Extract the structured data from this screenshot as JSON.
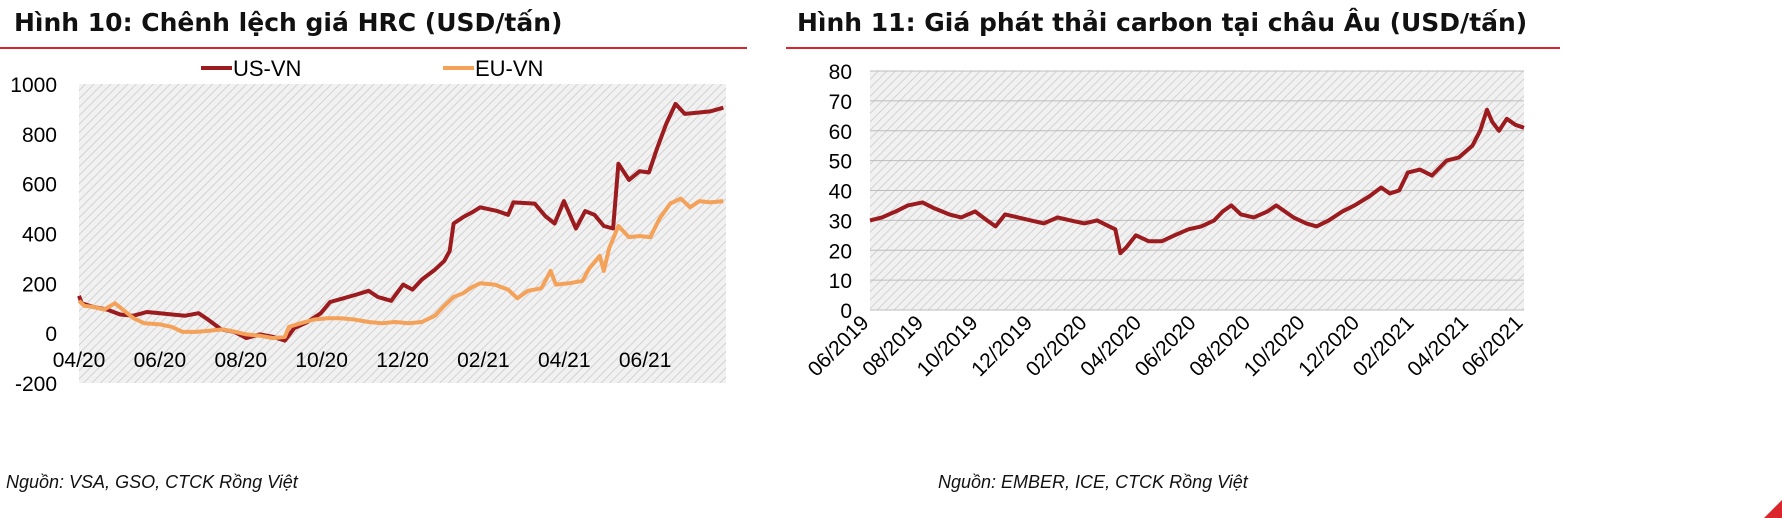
{
  "charts": [
    {
      "id": "fig10",
      "title": "Hình 10: Chênh lệch giá HRC (USD/tấn)",
      "source": "Nguồn: VSA, GSO, CTCK Rồng Việt"
    },
    {
      "id": "fig11",
      "title": "Hình 11: Giá phát thải carbon tại châu Âu (USD/tấn)",
      "source": "Nguồn: EMBER, ICE, CTCK Rồng Việt"
    }
  ],
  "colors": {
    "us_vn": "#9b1b1e",
    "eu_vn": "#f4a259",
    "carbon": "#9b1b1e",
    "accent": "#d9252b"
  },
  "chart_data": [
    {
      "type": "line",
      "title": "Hình 10: Chênh lệch giá HRC (USD/tấn)",
      "ylim": [
        -200,
        1000
      ],
      "yticks": [
        -200,
        0,
        200,
        400,
        600,
        800,
        1000
      ],
      "xlim": [
        "2020-04-01",
        "2021-08-01"
      ],
      "xtick_labels": [
        "04/20",
        "06/20",
        "08/20",
        "10/20",
        "12/20",
        "02/21",
        "04/21",
        "06/21"
      ],
      "legend_position": "top",
      "grid": "hatched",
      "series": [
        {
          "name": "US-VN",
          "points": [
            [
              "2020-04-01",
              150
            ],
            [
              "2020-04-03",
              120
            ],
            [
              "2020-04-12",
              105
            ],
            [
              "2020-04-22",
              95
            ],
            [
              "2020-05-02",
              75
            ],
            [
              "2020-05-12",
              70
            ],
            [
              "2020-05-22",
              85
            ],
            [
              "2020-06-01",
              80
            ],
            [
              "2020-06-10",
              75
            ],
            [
              "2020-06-20",
              70
            ],
            [
              "2020-06-30",
              80
            ],
            [
              "2020-07-07",
              55
            ],
            [
              "2020-07-17",
              15
            ],
            [
              "2020-07-27",
              5
            ],
            [
              "2020-08-05",
              -20
            ],
            [
              "2020-08-15",
              -5
            ],
            [
              "2020-08-25",
              -15
            ],
            [
              "2020-09-03",
              -30
            ],
            [
              "2020-09-10",
              20
            ],
            [
              "2020-09-20",
              45
            ],
            [
              "2020-09-30",
              80
            ],
            [
              "2020-10-07",
              125
            ],
            [
              "2020-10-17",
              140
            ],
            [
              "2020-10-27",
              155
            ],
            [
              "2020-11-05",
              170
            ],
            [
              "2020-11-12",
              145
            ],
            [
              "2020-11-22",
              130
            ],
            [
              "2020-12-01",
              195
            ],
            [
              "2020-12-08",
              175
            ],
            [
              "2020-12-15",
              215
            ],
            [
              "2020-12-25",
              255
            ],
            [
              "2021-01-01",
              290
            ],
            [
              "2021-01-05",
              330
            ],
            [
              "2021-01-08",
              440
            ],
            [
              "2021-01-15",
              465
            ],
            [
              "2021-01-22",
              485
            ],
            [
              "2021-01-28",
              505
            ],
            [
              "2021-02-10",
              490
            ],
            [
              "2021-02-18",
              475
            ],
            [
              "2021-02-22",
              525
            ],
            [
              "2021-03-10",
              520
            ],
            [
              "2021-03-18",
              470
            ],
            [
              "2021-03-25",
              440
            ],
            [
              "2021-04-01",
              530
            ],
            [
              "2021-04-10",
              420
            ],
            [
              "2021-04-17",
              490
            ],
            [
              "2021-04-24",
              475
            ],
            [
              "2021-05-01",
              430
            ],
            [
              "2021-05-08",
              420
            ],
            [
              "2021-05-12",
              680
            ],
            [
              "2021-05-20",
              615
            ],
            [
              "2021-05-28",
              650
            ],
            [
              "2021-06-04",
              645
            ],
            [
              "2021-06-10",
              740
            ],
            [
              "2021-06-17",
              840
            ],
            [
              "2021-06-24",
              920
            ],
            [
              "2021-07-01",
              880
            ],
            [
              "2021-07-10",
              885
            ],
            [
              "2021-07-20",
              890
            ],
            [
              "2021-07-30",
              905
            ]
          ]
        },
        {
          "name": "EU-VN",
          "points": [
            [
              "2020-04-01",
              130
            ],
            [
              "2020-04-05",
              110
            ],
            [
              "2020-04-12",
              105
            ],
            [
              "2020-04-20",
              95
            ],
            [
              "2020-04-28",
              120
            ],
            [
              "2020-05-05",
              90
            ],
            [
              "2020-05-12",
              60
            ],
            [
              "2020-05-20",
              40
            ],
            [
              "2020-06-01",
              35
            ],
            [
              "2020-06-10",
              25
            ],
            [
              "2020-06-18",
              5
            ],
            [
              "2020-06-28",
              5
            ],
            [
              "2020-07-08",
              10
            ],
            [
              "2020-07-18",
              15
            ],
            [
              "2020-07-28",
              5
            ],
            [
              "2020-08-05",
              -5
            ],
            [
              "2020-08-15",
              -10
            ],
            [
              "2020-08-25",
              -20
            ],
            [
              "2020-09-03",
              -15
            ],
            [
              "2020-09-06",
              25
            ],
            [
              "2020-09-15",
              40
            ],
            [
              "2020-09-25",
              55
            ],
            [
              "2020-10-05",
              60
            ],
            [
              "2020-10-15",
              60
            ],
            [
              "2020-10-25",
              55
            ],
            [
              "2020-11-05",
              45
            ],
            [
              "2020-11-15",
              40
            ],
            [
              "2020-11-25",
              45
            ],
            [
              "2020-12-05",
              40
            ],
            [
              "2020-12-15",
              45
            ],
            [
              "2020-12-25",
              70
            ],
            [
              "2021-01-01",
              110
            ],
            [
              "2021-01-08",
              145
            ],
            [
              "2021-01-15",
              160
            ],
            [
              "2021-01-22",
              185
            ],
            [
              "2021-01-28",
              200
            ],
            [
              "2021-02-08",
              195
            ],
            [
              "2021-02-18",
              175
            ],
            [
              "2021-02-25",
              140
            ],
            [
              "2021-03-05",
              170
            ],
            [
              "2021-03-15",
              180
            ],
            [
              "2021-03-22",
              250
            ],
            [
              "2021-03-26",
              195
            ],
            [
              "2021-04-05",
              200
            ],
            [
              "2021-04-15",
              210
            ],
            [
              "2021-04-20",
              260
            ],
            [
              "2021-04-28",
              310
            ],
            [
              "2021-05-01",
              250
            ],
            [
              "2021-05-05",
              340
            ],
            [
              "2021-05-12",
              430
            ],
            [
              "2021-05-20",
              385
            ],
            [
              "2021-05-28",
              390
            ],
            [
              "2021-06-05",
              385
            ],
            [
              "2021-06-12",
              460
            ],
            [
              "2021-06-20",
              520
            ],
            [
              "2021-06-28",
              540
            ],
            [
              "2021-07-05",
              505
            ],
            [
              "2021-07-12",
              530
            ],
            [
              "2021-07-20",
              525
            ],
            [
              "2021-07-30",
              530
            ]
          ]
        }
      ]
    },
    {
      "type": "line",
      "title": "Hình 11: Giá phát thải carbon tại châu Âu (USD/tấn)",
      "ylim": [
        0,
        80
      ],
      "yticks": [
        0,
        10,
        20,
        30,
        40,
        50,
        60,
        70,
        80
      ],
      "xlim": [
        "2019-06-01",
        "2021-06-30"
      ],
      "xtick_labels": [
        "06/2019",
        "08/2019",
        "10/2019",
        "12/2019",
        "02/2020",
        "04/2020",
        "06/2020",
        "08/2020",
        "10/2020",
        "12/2020",
        "02/2021",
        "04/2021",
        "06/2021"
      ],
      "grid": "hatched",
      "series": [
        {
          "points": [
            [
              "2019-06-01",
              30
            ],
            [
              "2019-06-15",
              31
            ],
            [
              "2019-07-01",
              33
            ],
            [
              "2019-07-15",
              35
            ],
            [
              "2019-08-01",
              36
            ],
            [
              "2019-08-15",
              34
            ],
            [
              "2019-09-01",
              32
            ],
            [
              "2019-09-15",
              31
            ],
            [
              "2019-10-01",
              33
            ],
            [
              "2019-10-15",
              30
            ],
            [
              "2019-10-25",
              28
            ],
            [
              "2019-11-05",
              32
            ],
            [
              "2019-11-20",
              31
            ],
            [
              "2019-12-05",
              30
            ],
            [
              "2019-12-20",
              29
            ],
            [
              "2020-01-05",
              31
            ],
            [
              "2020-01-20",
              30
            ],
            [
              "2020-02-05",
              29
            ],
            [
              "2020-02-20",
              30
            ],
            [
              "2020-03-05",
              28
            ],
            [
              "2020-03-12",
              27
            ],
            [
              "2020-03-18",
              19
            ],
            [
              "2020-03-25",
              21
            ],
            [
              "2020-04-05",
              25
            ],
            [
              "2020-04-20",
              23
            ],
            [
              "2020-05-05",
              23
            ],
            [
              "2020-05-20",
              25
            ],
            [
              "2020-06-05",
              27
            ],
            [
              "2020-06-20",
              28
            ],
            [
              "2020-07-05",
              30
            ],
            [
              "2020-07-15",
              33
            ],
            [
              "2020-07-25",
              35
            ],
            [
              "2020-08-05",
              32
            ],
            [
              "2020-08-20",
              31
            ],
            [
              "2020-09-05",
              33
            ],
            [
              "2020-09-15",
              35
            ],
            [
              "2020-09-25",
              33
            ],
            [
              "2020-10-05",
              31
            ],
            [
              "2020-10-20",
              29
            ],
            [
              "2020-11-01",
              28
            ],
            [
              "2020-11-15",
              30
            ],
            [
              "2020-12-01",
              33
            ],
            [
              "2020-12-15",
              35
            ],
            [
              "2021-01-01",
              38
            ],
            [
              "2021-01-15",
              41
            ],
            [
              "2021-01-25",
              39
            ],
            [
              "2021-02-05",
              40
            ],
            [
              "2021-02-15",
              46
            ],
            [
              "2021-03-01",
              47
            ],
            [
              "2021-03-15",
              45
            ],
            [
              "2021-04-01",
              50
            ],
            [
              "2021-04-15",
              51
            ],
            [
              "2021-05-01",
              55
            ],
            [
              "2021-05-10",
              60
            ],
            [
              "2021-05-18",
              67
            ],
            [
              "2021-05-24",
              63
            ],
            [
              "2021-06-01",
              60
            ],
            [
              "2021-06-10",
              64
            ],
            [
              "2021-06-20",
              62
            ],
            [
              "2021-06-30",
              61
            ]
          ]
        }
      ]
    }
  ]
}
